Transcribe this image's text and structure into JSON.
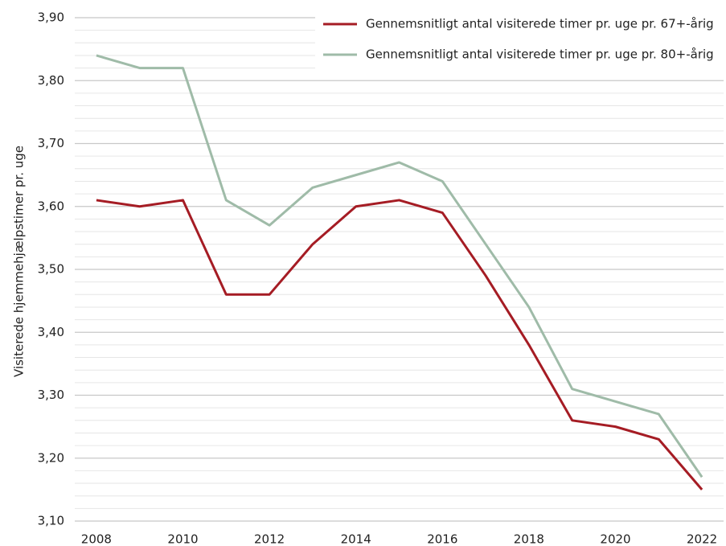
{
  "chart_data": {
    "type": "line",
    "y_label": "Visiterede hjemmehjælpstimer pr. uge",
    "x": [
      2008,
      2009,
      2010,
      2011,
      2012,
      2013,
      2014,
      2015,
      2016,
      2017,
      2018,
      2019,
      2020,
      2021,
      2022
    ],
    "series": [
      {
        "name": "Gennemsnitligt antal visiterede timer pr. uge pr. 67+-årig",
        "color": "#a51c24",
        "values": [
          3.61,
          3.6,
          3.61,
          3.46,
          3.46,
          3.54,
          3.6,
          3.61,
          3.59,
          3.49,
          3.38,
          3.26,
          3.25,
          3.23,
          3.15
        ]
      },
      {
        "name": "Gennemsnitligt antal visiterede timer pr. uge pr. 80+-årig",
        "color": "#9fbba8",
        "values": [
          3.84,
          3.82,
          3.82,
          3.61,
          3.57,
          3.63,
          3.65,
          3.67,
          3.64,
          3.54,
          3.44,
          3.31,
          3.29,
          3.27,
          3.17
        ]
      }
    ],
    "xlim": [
      2007.5,
      2022.5
    ],
    "xticks": [
      2008,
      2010,
      2012,
      2014,
      2016,
      2018,
      2020,
      2022
    ],
    "ylim": [
      3.1,
      3.9
    ],
    "yticks": [
      {
        "value": 3.1,
        "label": "3,10"
      },
      {
        "value": 3.2,
        "label": "3,20"
      },
      {
        "value": 3.3,
        "label": "3,30"
      },
      {
        "value": 3.4,
        "label": "3,40"
      },
      {
        "value": 3.5,
        "label": "3,50"
      },
      {
        "value": 3.6,
        "label": "3,60"
      },
      {
        "value": 3.7,
        "label": "3,70"
      },
      {
        "value": 3.8,
        "label": "3,80"
      },
      {
        "value": 3.9,
        "label": "3,90"
      }
    ],
    "yminor_ticks": [
      3.12,
      3.14,
      3.16,
      3.18,
      3.22,
      3.24,
      3.26,
      3.28,
      3.32,
      3.34,
      3.36,
      3.38,
      3.42,
      3.44,
      3.46,
      3.48,
      3.52,
      3.54,
      3.56,
      3.58,
      3.62,
      3.64,
      3.66,
      3.68,
      3.72,
      3.74,
      3.76,
      3.78,
      3.82,
      3.84,
      3.86,
      3.88
    ],
    "grid": true,
    "legend": "top-right"
  }
}
